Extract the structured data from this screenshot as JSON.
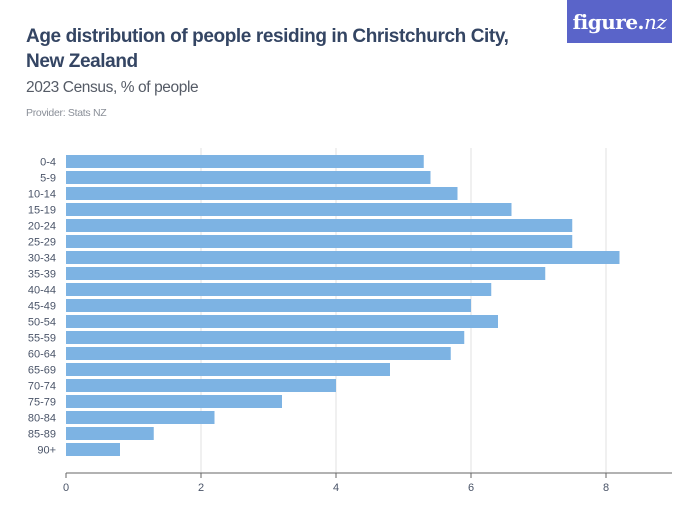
{
  "header": {
    "title": "Age distribution of people residing in Christchurch City, New Zealand",
    "subtitle": "2023 Census, % of people",
    "provider": "Provider: Stats NZ"
  },
  "logo": {
    "text_main": "figure.",
    "text_accent": "nz",
    "bg_color": "#5a64c9"
  },
  "chart_data": {
    "type": "bar",
    "orientation": "horizontal",
    "title": "Age distribution of people residing in Christchurch City, New Zealand",
    "subtitle": "2023 Census, % of people",
    "xlabel": "",
    "ylabel": "",
    "categories": [
      "0-4",
      "5-9",
      "10-14",
      "15-19",
      "20-24",
      "25-29",
      "30-34",
      "35-39",
      "40-44",
      "45-49",
      "50-54",
      "55-59",
      "60-64",
      "65-69",
      "70-74",
      "75-79",
      "80-84",
      "85-89",
      "90+"
    ],
    "values": [
      5.3,
      5.4,
      5.8,
      6.6,
      7.5,
      7.5,
      8.2,
      7.1,
      6.3,
      6.0,
      6.4,
      5.9,
      5.7,
      4.8,
      4.0,
      3.2,
      2.2,
      1.3,
      0.8
    ],
    "xlim": [
      0,
      9
    ],
    "xticks": [
      0,
      2,
      4,
      6,
      8
    ],
    "grid": true,
    "legend": "none",
    "bar_color": "#7db3e3",
    "grid_color": "#e2e2e2",
    "axis_color": "#666666"
  }
}
